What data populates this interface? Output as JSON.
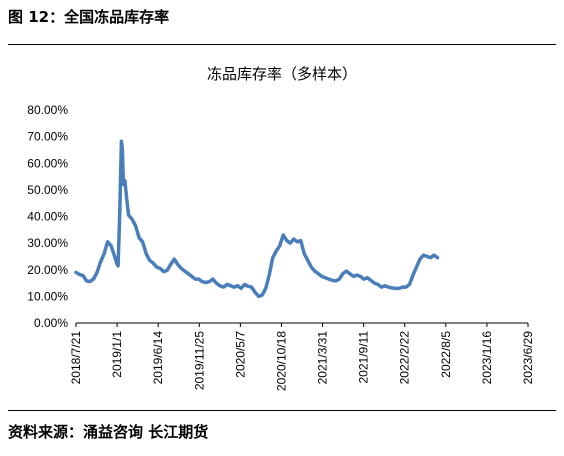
{
  "figure": {
    "label": "图 12：全国冻品库存率",
    "source": "资料来源：涌益咨询  长江期货"
  },
  "chart_data": {
    "type": "line",
    "title": "冻品库存率（多样本）",
    "xlabel": "",
    "ylabel": "",
    "ylim": [
      0,
      80
    ],
    "y_tick_labels": [
      "0.00%",
      "10.00%",
      "20.00%",
      "30.00%",
      "40.00%",
      "50.00%",
      "60.00%",
      "70.00%",
      "80.00%"
    ],
    "x_tick_labels": [
      "2018/7/21",
      "2019/1/1",
      "2019/6/14",
      "2019/11/25",
      "2020/5/7",
      "2020/10/18",
      "2021/3/31",
      "2021/9/11",
      "2022/2/22",
      "2022/8/5",
      "2023/1/16",
      "2023/6/29"
    ],
    "grid": false,
    "legend": "none",
    "line_color": "#4a7ebb",
    "series": [
      {
        "values": [
          [
            "2018-07-21",
            19.0
          ],
          [
            "2018-08-04",
            18.2
          ],
          [
            "2018-08-18",
            17.8
          ],
          [
            "2018-09-01",
            15.8
          ],
          [
            "2018-09-15",
            15.6
          ],
          [
            "2018-09-29",
            16.5
          ],
          [
            "2018-10-13",
            19.0
          ],
          [
            "2018-10-27",
            23.0
          ],
          [
            "2018-11-10",
            26.0
          ],
          [
            "2018-11-24",
            30.5
          ],
          [
            "2018-12-08",
            29.0
          ],
          [
            "2018-12-22",
            25.0
          ],
          [
            "2019-01-01",
            22.0
          ],
          [
            "2019-01-05",
            21.5
          ],
          [
            "2019-01-12",
            42.0
          ],
          [
            "2019-01-18",
            68.3
          ],
          [
            "2019-01-22",
            65.0
          ],
          [
            "2019-01-26",
            52.0
          ],
          [
            "2019-02-01",
            53.5
          ],
          [
            "2019-02-08",
            47.0
          ],
          [
            "2019-02-16",
            40.5
          ],
          [
            "2019-03-02",
            39.0
          ],
          [
            "2019-03-16",
            36.5
          ],
          [
            "2019-03-30",
            32.0
          ],
          [
            "2019-04-13",
            30.5
          ],
          [
            "2019-04-27",
            26.0
          ],
          [
            "2019-05-11",
            23.5
          ],
          [
            "2019-05-25",
            22.5
          ],
          [
            "2019-06-08",
            21.0
          ],
          [
            "2019-06-22",
            20.5
          ],
          [
            "2019-07-06",
            19.3
          ],
          [
            "2019-07-20",
            19.8
          ],
          [
            "2019-08-03",
            22.0
          ],
          [
            "2019-08-17",
            24.0
          ],
          [
            "2019-08-31",
            22.0
          ],
          [
            "2019-09-14",
            20.5
          ],
          [
            "2019-09-28",
            19.5
          ],
          [
            "2019-10-12",
            18.5
          ],
          [
            "2019-10-26",
            17.5
          ],
          [
            "2019-11-09",
            16.5
          ],
          [
            "2019-11-23",
            16.5
          ],
          [
            "2019-12-07",
            15.5
          ],
          [
            "2019-12-21",
            15.2
          ],
          [
            "2020-01-04",
            15.5
          ],
          [
            "2020-01-18",
            16.5
          ],
          [
            "2020-02-01",
            15.0
          ],
          [
            "2020-02-15",
            14.0
          ],
          [
            "2020-03-01",
            13.5
          ],
          [
            "2020-03-15",
            14.5
          ],
          [
            "2020-03-29",
            14.0
          ],
          [
            "2020-04-12",
            13.5
          ],
          [
            "2020-04-26",
            14.0
          ],
          [
            "2020-05-10",
            13.0
          ],
          [
            "2020-05-24",
            14.5
          ],
          [
            "2020-06-07",
            13.8
          ],
          [
            "2020-06-21",
            13.5
          ],
          [
            "2020-07-05",
            11.5
          ],
          [
            "2020-07-19",
            10.0
          ],
          [
            "2020-08-02",
            10.5
          ],
          [
            "2020-08-16",
            13.0
          ],
          [
            "2020-08-30",
            18.0
          ],
          [
            "2020-09-13",
            24.5
          ],
          [
            "2020-09-27",
            27.0
          ],
          [
            "2020-10-11",
            29.0
          ],
          [
            "2020-10-25",
            33.0
          ],
          [
            "2020-11-08",
            31.0
          ],
          [
            "2020-11-22",
            30.0
          ],
          [
            "2020-12-06",
            31.5
          ],
          [
            "2020-12-20",
            30.5
          ],
          [
            "2021-01-03",
            31.0
          ],
          [
            "2021-01-17",
            26.0
          ],
          [
            "2021-01-31",
            23.5
          ],
          [
            "2021-02-14",
            21.0
          ],
          [
            "2021-02-28",
            19.5
          ],
          [
            "2021-03-14",
            18.5
          ],
          [
            "2021-03-28",
            17.5
          ],
          [
            "2021-04-11",
            17.0
          ],
          [
            "2021-04-25",
            16.5
          ],
          [
            "2021-05-09",
            16.0
          ],
          [
            "2021-05-23",
            15.8
          ],
          [
            "2021-06-06",
            16.5
          ],
          [
            "2021-06-20",
            18.5
          ],
          [
            "2021-07-04",
            19.5
          ],
          [
            "2021-07-18",
            18.5
          ],
          [
            "2021-08-01",
            17.5
          ],
          [
            "2021-08-15",
            18.0
          ],
          [
            "2021-08-29",
            17.5
          ],
          [
            "2021-09-12",
            16.5
          ],
          [
            "2021-09-26",
            17.0
          ],
          [
            "2021-10-10",
            16.0
          ],
          [
            "2021-10-24",
            15.0
          ],
          [
            "2021-11-07",
            14.5
          ],
          [
            "2021-11-21",
            13.5
          ],
          [
            "2021-12-05",
            14.0
          ],
          [
            "2021-12-19",
            13.5
          ],
          [
            "2022-01-02",
            13.2
          ],
          [
            "2022-01-16",
            13.0
          ],
          [
            "2022-01-30",
            13.0
          ],
          [
            "2022-02-13",
            13.5
          ],
          [
            "2022-02-27",
            13.5
          ],
          [
            "2022-03-13",
            14.5
          ],
          [
            "2022-03-27",
            18.0
          ],
          [
            "2022-04-10",
            21.0
          ],
          [
            "2022-04-24",
            24.0
          ],
          [
            "2022-05-08",
            25.5
          ],
          [
            "2022-05-22",
            25.0
          ],
          [
            "2022-06-05",
            24.5
          ],
          [
            "2022-06-19",
            25.5
          ],
          [
            "2022-07-03",
            24.5
          ]
        ]
      }
    ]
  }
}
